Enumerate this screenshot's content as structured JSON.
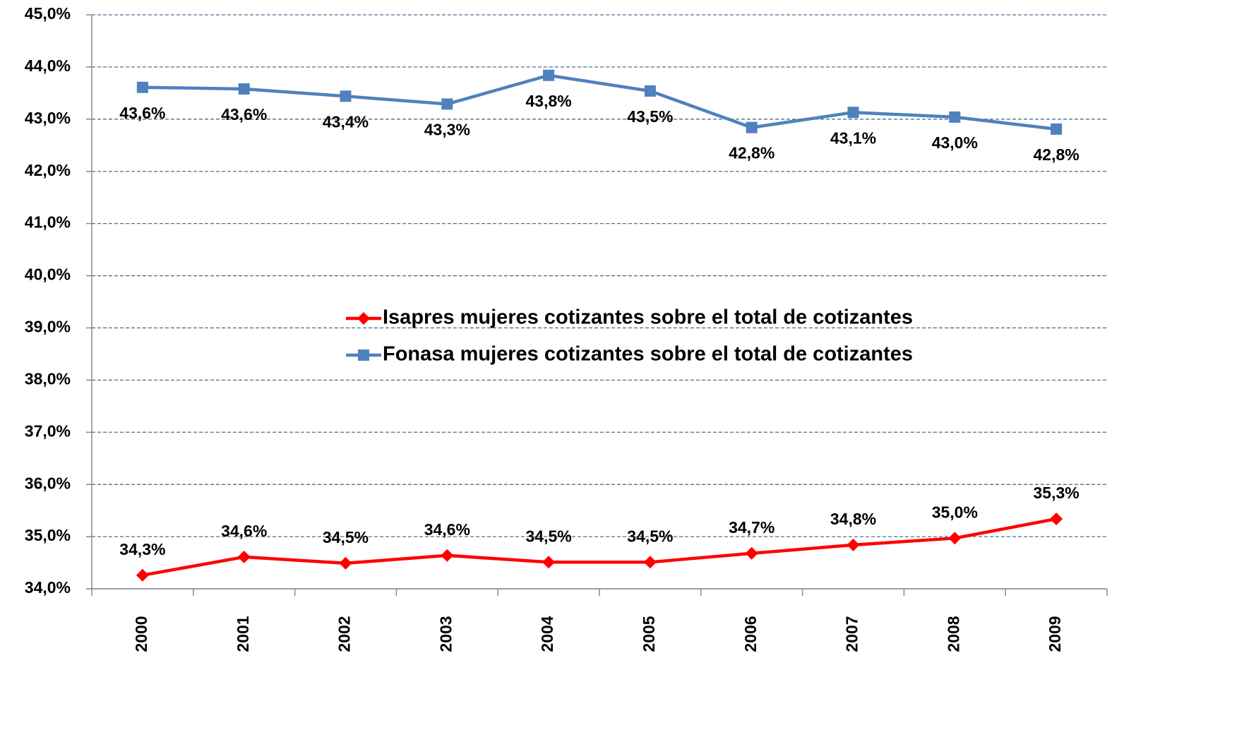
{
  "chart_data": {
    "type": "line",
    "categories": [
      "2000",
      "2001",
      "2002",
      "2003",
      "2004",
      "2005",
      "2006",
      "2007",
      "2008",
      "2009"
    ],
    "series": [
      {
        "name": "Isapres mujeres cotizantes sobre el total de cotizantes",
        "color": "#ff0000",
        "marker": "diamond",
        "values": [
          34.26,
          34.61,
          34.49,
          34.64,
          34.51,
          34.51,
          34.68,
          34.84,
          34.97,
          35.34
        ],
        "value_labels": [
          "34,3%",
          "34,6%",
          "34,5%",
          "34,6%",
          "34,5%",
          "34,5%",
          "34,7%",
          "34,8%",
          "35,0%",
          "35,3%"
        ]
      },
      {
        "name": "Fonasa mujeres cotizantes sobre el total de cotizantes",
        "color": "#4f81bd",
        "marker": "square",
        "values": [
          43.61,
          43.58,
          43.44,
          43.29,
          43.84,
          43.54,
          42.84,
          43.13,
          43.04,
          42.81
        ],
        "value_labels": [
          "43,6%",
          "43,6%",
          "43,4%",
          "43,3%",
          "43,8%",
          "43,5%",
          "42,8%",
          "43,1%",
          "43,0%",
          "42,8%"
        ]
      }
    ],
    "ylim": [
      34,
      45
    ],
    "yticks": [
      {
        "value": 34,
        "label": "34,0%"
      },
      {
        "value": 35,
        "label": "35,0%"
      },
      {
        "value": 36,
        "label": "36,0%"
      },
      {
        "value": 37,
        "label": "37,0%"
      },
      {
        "value": 38,
        "label": "38,0%"
      },
      {
        "value": 39,
        "label": "39,0%"
      },
      {
        "value": 40,
        "label": "40,0%"
      },
      {
        "value": 41,
        "label": "41,0%"
      },
      {
        "value": 42,
        "label": "42,0%"
      },
      {
        "value": 43,
        "label": "43,0%"
      },
      {
        "value": 44,
        "label": "44,0%"
      },
      {
        "value": 45,
        "label": "45,0%"
      }
    ],
    "grid": true
  }
}
